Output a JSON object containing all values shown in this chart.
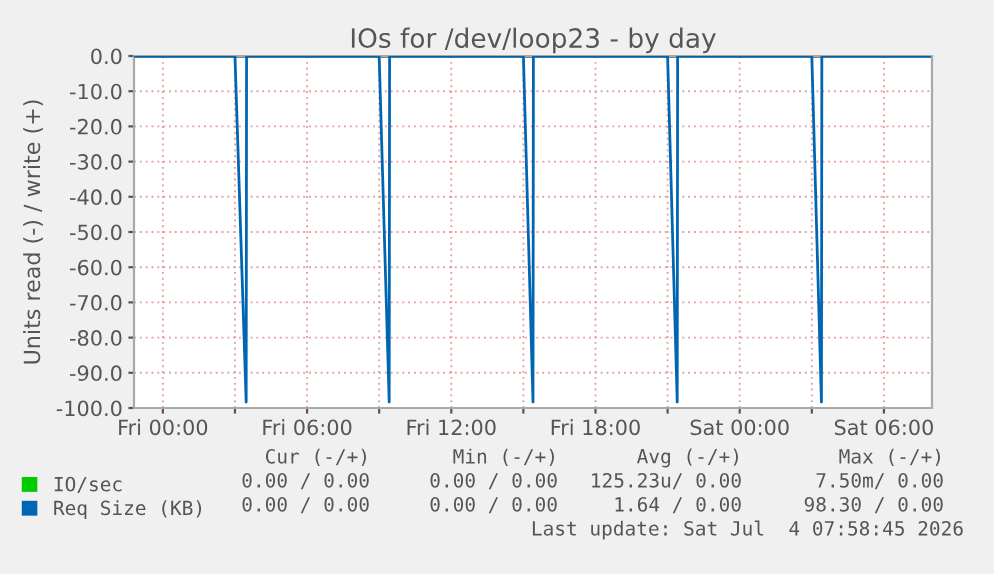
{
  "chart_data": {
    "type": "line",
    "title": "IOs for /dev/loop23 - by day",
    "ylabel": "Units read (-) / write (+)",
    "xlim": [
      "2026-07-02T22:48",
      "2026-07-04T08:00"
    ],
    "ylim": [
      -100,
      0
    ],
    "xticks": [
      {
        "value": "2026-07-03T00:00",
        "label": "Fri 00:00"
      },
      {
        "value": "2026-07-03T03:00",
        "label": null
      },
      {
        "value": "2026-07-03T06:00",
        "label": "Fri 06:00"
      },
      {
        "value": "2026-07-03T09:00",
        "label": null
      },
      {
        "value": "2026-07-03T12:00",
        "label": "Fri 12:00"
      },
      {
        "value": "2026-07-03T15:00",
        "label": null
      },
      {
        "value": "2026-07-03T18:00",
        "label": "Fri 18:00"
      },
      {
        "value": "2026-07-03T21:00",
        "label": null
      },
      {
        "value": "2026-07-04T00:00",
        "label": "Sat 00:00"
      },
      {
        "value": "2026-07-04T03:00",
        "label": null
      },
      {
        "value": "2026-07-04T06:00",
        "label": "Sat 06:00"
      }
    ],
    "yticks": [
      {
        "value": 0,
        "label": "0.0"
      },
      {
        "value": -10,
        "label": "-10.0"
      },
      {
        "value": -20,
        "label": "-20.0"
      },
      {
        "value": -30,
        "label": "-30.0"
      },
      {
        "value": -40,
        "label": "-40.0"
      },
      {
        "value": -50,
        "label": "-50.0"
      },
      {
        "value": -60,
        "label": "-60.0"
      },
      {
        "value": -70,
        "label": "-70.0"
      },
      {
        "value": -80,
        "label": "-80.0"
      },
      {
        "value": -90,
        "label": "-90.0"
      },
      {
        "value": -100,
        "label": "-100.0"
      }
    ],
    "grid": true,
    "legend": "bottom left",
    "marker": "none",
    "line_style": "solid",
    "ref_lines": [
      {
        "axis": "y",
        "value": 0,
        "color": "#000000"
      }
    ],
    "series": [
      {
        "name": "IO/sec",
        "color": "#00cc00"
      },
      {
        "name": "Req Size (KB)",
        "color": "#0066b3",
        "x": [
          "2026-07-02T22:48",
          "2026-07-03T03:00",
          "2026-07-03T03:28",
          "2026-07-03T03:29",
          "2026-07-03T09:00",
          "2026-07-03T09:25",
          "2026-07-03T09:26",
          "2026-07-03T15:00",
          "2026-07-03T15:24",
          "2026-07-03T15:25",
          "2026-07-03T21:00",
          "2026-07-03T21:24",
          "2026-07-03T21:25",
          "2026-07-04T03:00",
          "2026-07-04T03:24",
          "2026-07-04T03:25",
          "2026-07-04T07:54"
        ],
        "values": [
          0,
          0,
          -98.3,
          0,
          0,
          -98.3,
          0,
          0,
          -98.3,
          0,
          0,
          -98.3,
          0,
          0,
          -98.3,
          0,
          0
        ]
      }
    ],
    "annotations": [
      "Cur (-/+)",
      "Min (-/+)",
      "Avg (-/+)",
      "Max (-/+)",
      "0.00 / 0.00",
      "0.00 / 0.00",
      "125.23u/ 0.00",
      "7.50m/ 0.00",
      "0.00 / 0.00",
      "0.00 / 0.00",
      "1.64 / 0.00",
      "98.30 / 0.00",
      "Last update: Sat Jul  4 07:58:45 2026"
    ]
  }
}
